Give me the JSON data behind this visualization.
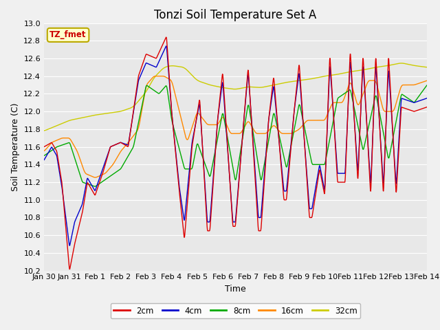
{
  "title": "Tonzi Soil Temperature Set A",
  "xlabel": "Time",
  "ylabel": "Soil Temperature (C)",
  "ylim": [
    10.2,
    13.0
  ],
  "xlim": [
    0,
    15
  ],
  "xtick_labels": [
    "Jan 30",
    "Jan 31",
    "Feb 1",
    "Feb 2",
    "Feb 3",
    "Feb 4",
    "Feb 5",
    "Feb 6",
    "Feb 7",
    "Feb 8",
    "Feb 9",
    "Feb 10",
    "Feb 11",
    "Feb 12",
    "Feb 13",
    "Feb 14"
  ],
  "xtick_positions": [
    0,
    1,
    2,
    3,
    4,
    5,
    6,
    7,
    8,
    9,
    10,
    11,
    12,
    13,
    14,
    15
  ],
  "yticks": [
    10.2,
    10.4,
    10.6,
    10.8,
    11.0,
    11.2,
    11.4,
    11.6,
    11.8,
    12.0,
    12.2,
    12.4,
    12.6,
    12.8,
    13.0
  ],
  "series_colors": [
    "#dd0000",
    "#0000cc",
    "#00aa00",
    "#ff8800",
    "#cccc00"
  ],
  "series_labels": [
    "2cm",
    "4cm",
    "8cm",
    "16cm",
    "32cm"
  ],
  "legend_label": "TZ_fmet",
  "legend_bg": "#ffffcc",
  "legend_border": "#bbaa00",
  "legend_text_color": "#cc0000",
  "plot_bg_color": "#e8e8e8",
  "fig_bg_color": "#f0f0f0",
  "title_fontsize": 12,
  "axis_label_fontsize": 9,
  "tick_fontsize": 8,
  "line_width": 1.0,
  "grid_color": "#ffffff",
  "grid_linewidth": 0.8
}
